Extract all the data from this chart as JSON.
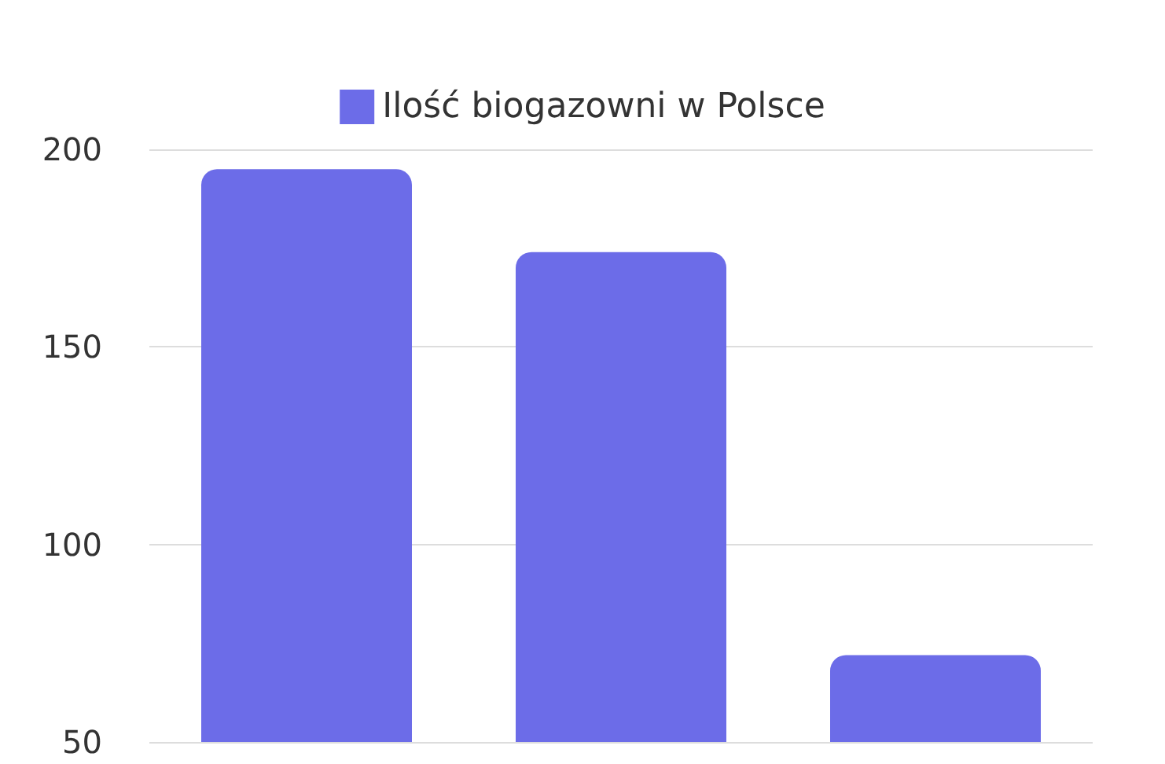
{
  "chart_data": {
    "type": "bar",
    "categories": [
      null,
      null,
      null
    ],
    "series": [
      {
        "name": "Ilość biogazowni w Polsce",
        "color": "#6c6ce8",
        "values": [
          195,
          174,
          72
        ]
      }
    ],
    "ylim": [
      50,
      200
    ],
    "yticks": [
      50,
      100,
      150,
      200
    ],
    "grid": "y",
    "legend": "top",
    "tick_labels": "y"
  }
}
